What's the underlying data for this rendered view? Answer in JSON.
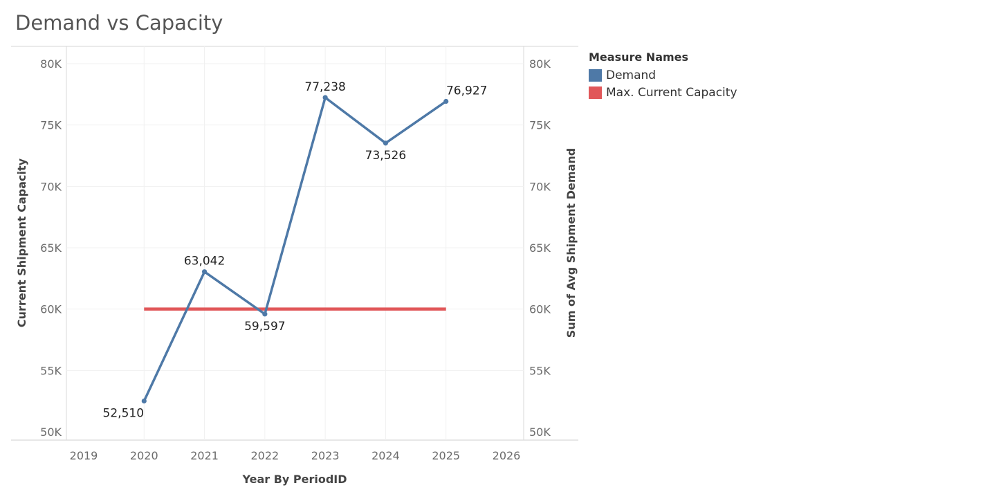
{
  "chart_data": {
    "type": "line",
    "title": "Demand vs Capacity",
    "xlabel": "Year By PeriodID",
    "ylabel_left": "Current Shipment Capacity",
    "ylabel_right": "Sum of Avg Shipment Demand",
    "x_ticks": [
      "2019",
      "2020",
      "2021",
      "2022",
      "2023",
      "2024",
      "2025",
      "2026"
    ],
    "x_range": [
      2019,
      2026
    ],
    "ylim": [
      50000,
      81000
    ],
    "y_ticks": [
      50000,
      55000,
      60000,
      65000,
      70000,
      75000,
      80000
    ],
    "y_tick_labels": [
      "50K",
      "55K",
      "60K",
      "65K",
      "70K",
      "75K",
      "80K"
    ],
    "series": [
      {
        "name": "Demand",
        "color": "#4e79a7",
        "x": [
          2020,
          2021,
          2022,
          2023,
          2024,
          2025
        ],
        "values": [
          52510,
          63042,
          59597,
          77238,
          73526,
          76927
        ],
        "labels": [
          "52,510",
          "63,042",
          "59,597",
          "77,238",
          "73,526",
          "76,927"
        ],
        "label_position": [
          "below",
          "above",
          "below",
          "above",
          "below",
          "above"
        ]
      },
      {
        "name": "Max. Current Capacity",
        "color": "#e15759",
        "x": [
          2020,
          2025
        ],
        "values": [
          60000,
          60000
        ]
      }
    ],
    "legend": {
      "title": "Measure Names",
      "position": "top-right",
      "entries": [
        {
          "label": "Demand",
          "color": "#4e79a7"
        },
        {
          "label": "Max. Current Capacity",
          "color": "#e15759"
        }
      ]
    },
    "grid": true
  }
}
